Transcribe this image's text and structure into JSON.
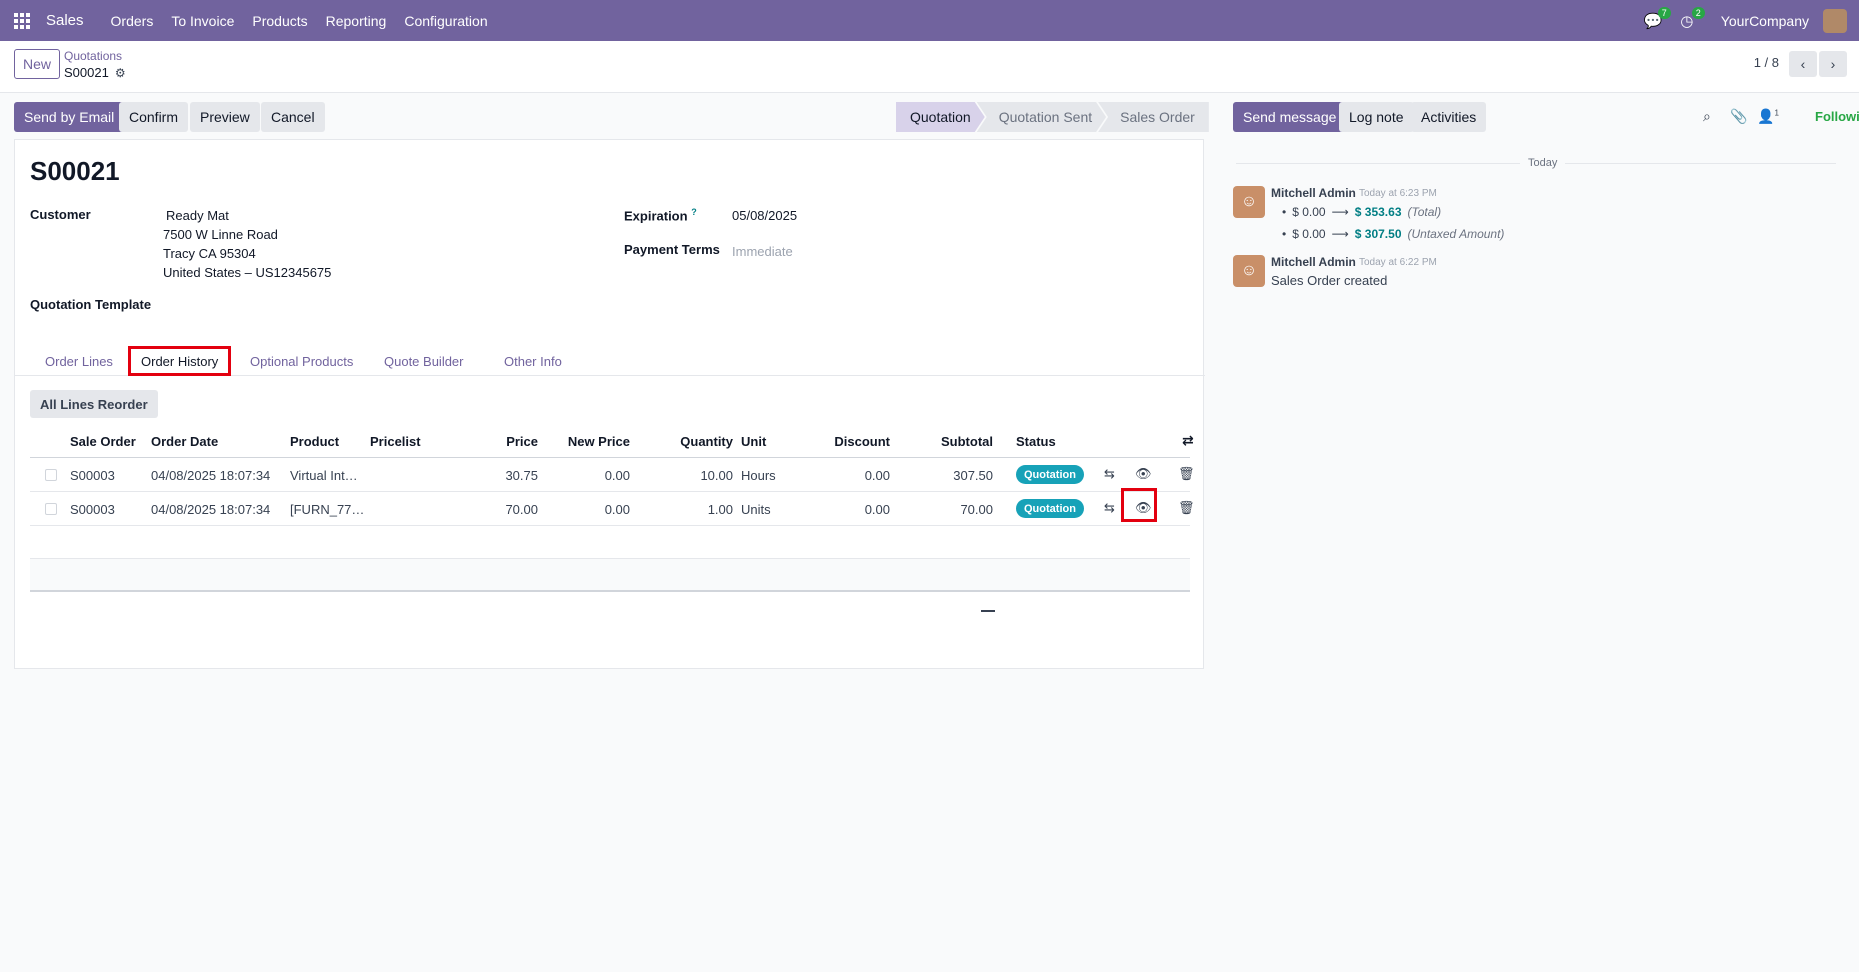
{
  "navbar": {
    "app_name": "Sales",
    "menu": [
      "Orders",
      "To Invoice",
      "Products",
      "Reporting",
      "Configuration"
    ],
    "messages_count": "7",
    "activities_count": "2",
    "company": "YourCompany"
  },
  "control_panel": {
    "new_label": "New",
    "breadcrumb_parent": "Quotations",
    "breadcrumb_current": "S00021",
    "pager": "1 / 8"
  },
  "actions": {
    "send_email": "Send by Email",
    "confirm": "Confirm",
    "preview": "Preview",
    "cancel": "Cancel"
  },
  "statusbar": [
    "Quotation",
    "Quotation Sent",
    "Sales Order"
  ],
  "form": {
    "title": "S00021",
    "customer_label": "Customer",
    "customer_name": "Ready Mat",
    "customer_address_1": "7500 W Linne Road",
    "customer_address_2": "Tracy CA 95304",
    "customer_address_3": "United States – US12345675",
    "expiration_label": "Expiration",
    "expiration_help": "?",
    "expiration_value": "05/08/2025",
    "payment_terms_label": "Payment Terms",
    "payment_terms_placeholder": "Immediate",
    "template_label": "Quotation Template"
  },
  "tabs": [
    "Order Lines",
    "Order History",
    "Optional Products",
    "Quote Builder",
    "Other Info"
  ],
  "reorder_label": "All Lines Reorder",
  "table": {
    "headers": [
      "Sale Order",
      "Order Date",
      "Product",
      "Pricelist",
      "Price",
      "New Price",
      "Quantity",
      "Unit",
      "Discount",
      "Subtotal",
      "Status"
    ],
    "rows": [
      {
        "sale_order": "S00003",
        "date": "04/08/2025 18:07:34",
        "product": "Virtual Int…",
        "pricelist": "",
        "price": "30.75",
        "new_price": "0.00",
        "qty": "10.00",
        "unit": "Hours",
        "discount": "0.00",
        "subtotal": "307.50",
        "status": "Quotation"
      },
      {
        "sale_order": "S00003",
        "date": "04/08/2025 18:07:34",
        "product": "[FURN_77…",
        "pricelist": "",
        "price": "70.00",
        "new_price": "0.00",
        "qty": "1.00",
        "unit": "Units",
        "discount": "0.00",
        "subtotal": "70.00",
        "status": "Quotation"
      }
    ]
  },
  "chatter": {
    "send_message": "Send message",
    "log_note": "Log note",
    "activities": "Activities",
    "followers_count": "1",
    "following": "Following",
    "today": "Today",
    "messages": [
      {
        "author": "Mitchell Admin",
        "time": "Today at 6:23 PM",
        "changes": [
          {
            "old": "$ 0.00",
            "new": "$ 353.63",
            "field": "(Total)"
          },
          {
            "old": "$ 0.00",
            "new": "$ 307.50",
            "field": "(Untaxed Amount)"
          }
        ]
      },
      {
        "author": "Mitchell Admin",
        "time": "Today at 6:22 PM",
        "body": "Sales Order created"
      }
    ]
  }
}
